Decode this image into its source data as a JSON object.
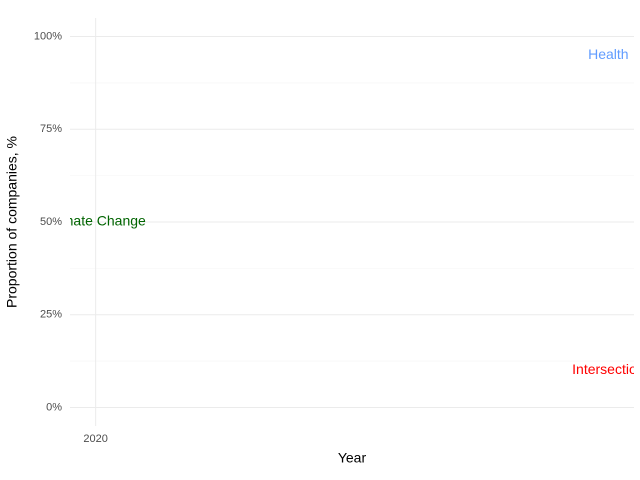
{
  "chart_data": {
    "type": "text",
    "x_label": "Year",
    "y_label": "Proportion of companies, %",
    "xlim": [
      2019.95,
      2021.05
    ],
    "xticks": [
      2020
    ],
    "ylim": [
      -5,
      105
    ],
    "yticks": [
      {
        "value": 0,
        "label": "0%"
      },
      {
        "value": 25,
        "label": "25%"
      },
      {
        "value": 50,
        "label": "50%"
      },
      {
        "value": 75,
        "label": "75%"
      },
      {
        "value": 100,
        "label": "100%"
      }
    ],
    "grid": true,
    "annotations": [
      {
        "text": "Health",
        "x": 2021,
        "y": 95,
        "color": "#619cff"
      },
      {
        "text": "Climate Change",
        "x": 2020,
        "y": 50,
        "color": "#006400"
      },
      {
        "text": "Intersection",
        "x": 2021,
        "y": 10,
        "color": "#ff0000"
      }
    ]
  }
}
